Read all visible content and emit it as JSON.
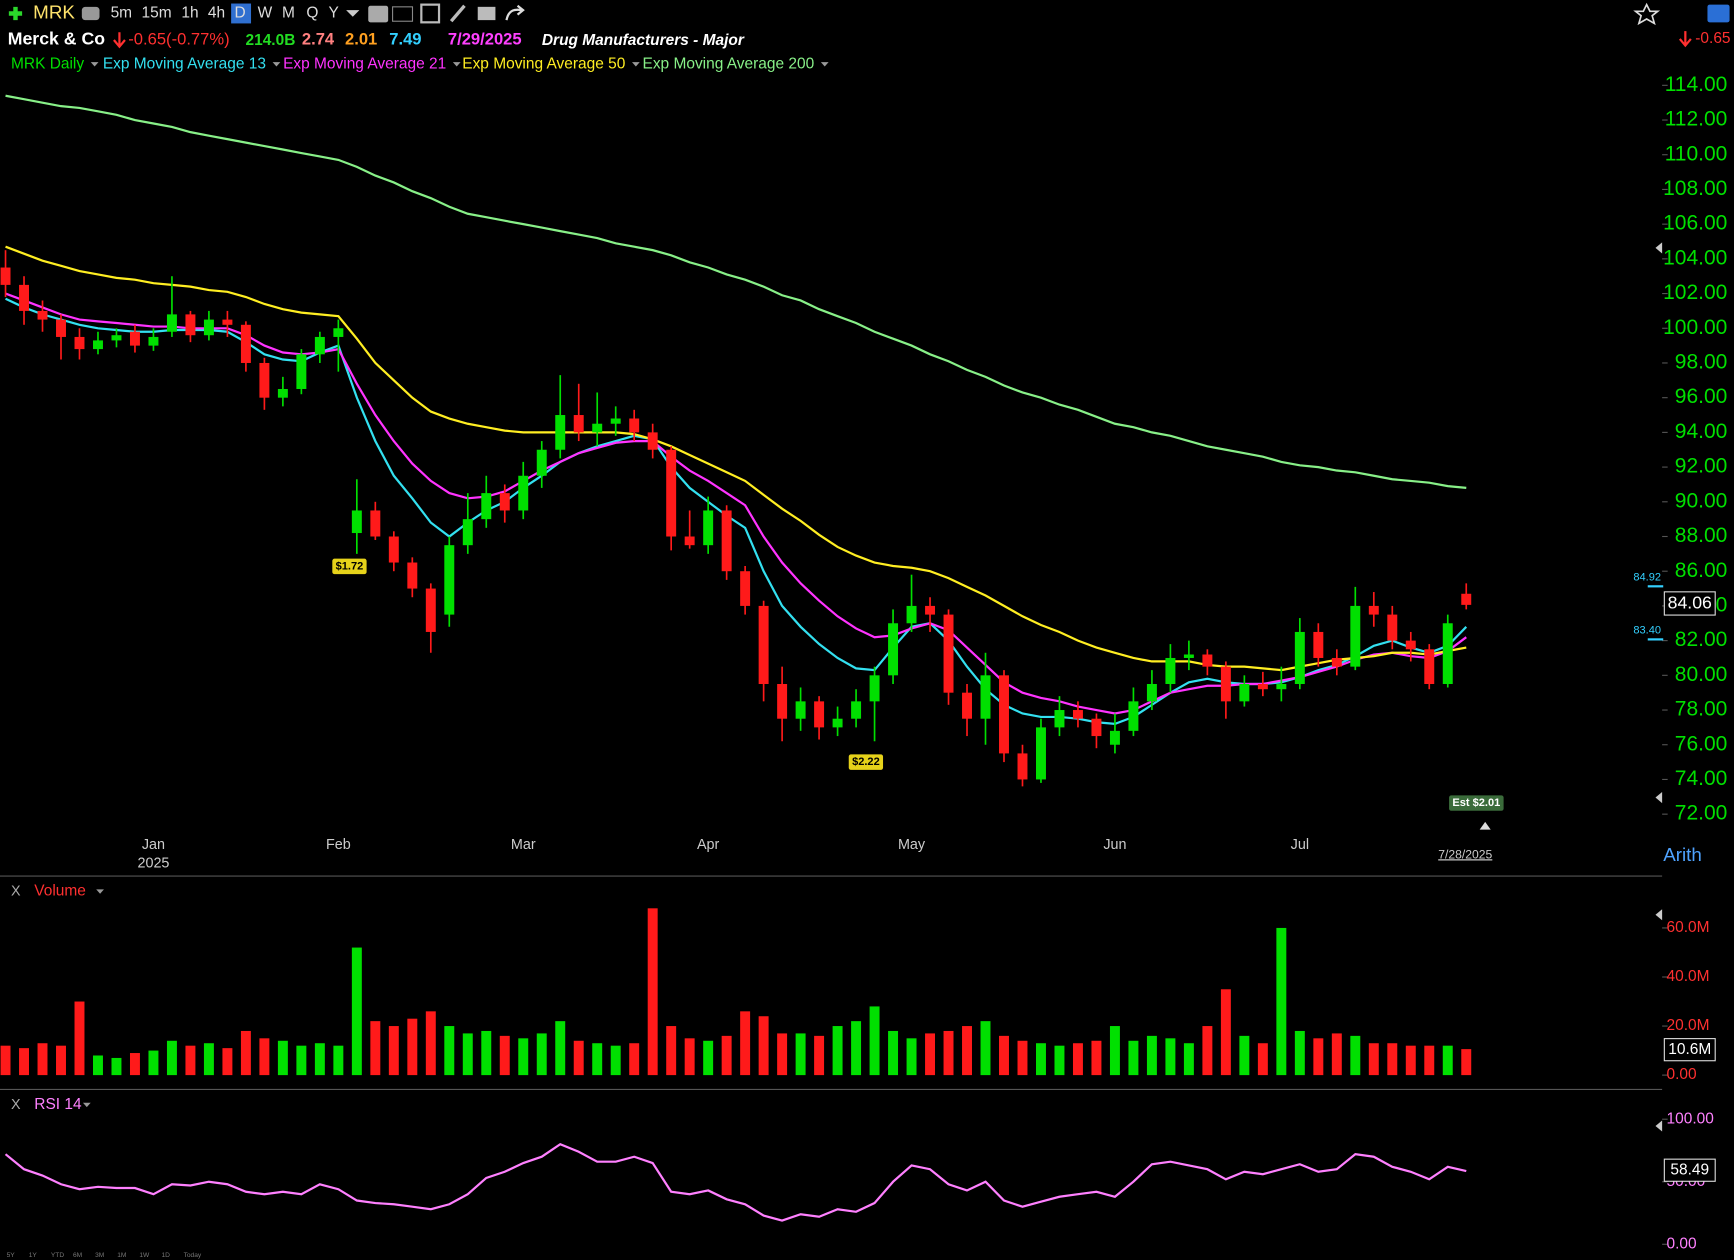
{
  "toolbar": {
    "symbol": "MRK",
    "intervals": [
      "5m",
      "15m",
      "1h",
      "4h",
      "D",
      "W",
      "M",
      "Q",
      "Y"
    ],
    "ranges": [
      "5Y",
      "1Y",
      "YTD",
      "6M",
      "3M",
      "1M",
      "1W",
      "1D",
      "Today"
    ]
  },
  "header": {
    "name": "Merck & Co",
    "change": "-0.65(-0.77%)",
    "market_cap": "214.0B",
    "stat1": "2.74",
    "stat2": "2.01",
    "stat3": "7.49",
    "date": "7/29/2025",
    "industry": "Drug Manufacturers - Major",
    "right_change": "-0.65"
  },
  "chart_data": [
    {
      "type": "candlestick",
      "name": "MRK Daily",
      "up_color": "#00e000",
      "down_color": "#ff1a1a",
      "categories": [
        null,
        null,
        null,
        null,
        null,
        null,
        null,
        null,
        "Jan",
        null,
        null,
        null,
        null,
        null,
        null,
        null,
        null,
        null,
        "Feb",
        null,
        null,
        null,
        null,
        null,
        null,
        null,
        null,
        null,
        "Mar",
        null,
        null,
        null,
        null,
        null,
        null,
        null,
        null,
        null,
        "Apr",
        null,
        null,
        null,
        null,
        null,
        null,
        null,
        null,
        null,
        null,
        "May",
        null,
        null,
        null,
        null,
        null,
        null,
        null,
        null,
        null,
        null,
        "Jun",
        null,
        null,
        null,
        null,
        null,
        null,
        null,
        null,
        null,
        "Jul",
        null,
        null,
        null,
        null,
        null,
        null,
        null,
        null,
        null
      ],
      "year_label": "2025",
      "last_date_label": "7/28/2025",
      "scale_label": "Arith",
      "annotations": [
        "$1.72",
        "$2.22",
        "Est $2.01"
      ],
      "price_flags": [
        "84.92",
        "83.40"
      ],
      "ohlc": [
        [
          103.5,
          104.5,
          101.8,
          102.5
        ],
        [
          102.5,
          103,
          100.2,
          101
        ],
        [
          101,
          101.6,
          99.8,
          100.5
        ],
        [
          100.5,
          100.8,
          98.2,
          99.5
        ],
        [
          99.5,
          100,
          98.2,
          98.8
        ],
        [
          98.8,
          99.8,
          98.5,
          99.3
        ],
        [
          99.3,
          100,
          98.9,
          99.6
        ],
        [
          99.8,
          100.2,
          98.6,
          99
        ],
        [
          99,
          100,
          98.7,
          99.5
        ],
        [
          99.8,
          103,
          99.5,
          100.8
        ],
        [
          100.8,
          101,
          99.2,
          99.6
        ],
        [
          99.6,
          101,
          99.3,
          100.5
        ],
        [
          100.5,
          101,
          99.5,
          100.2
        ],
        [
          100.2,
          100.4,
          97.5,
          98
        ],
        [
          98,
          98.3,
          95.3,
          96
        ],
        [
          96,
          97.2,
          95.5,
          96.5
        ],
        [
          96.5,
          98.8,
          96.2,
          98.5
        ],
        [
          98.5,
          99.8,
          98,
          99.5
        ],
        [
          99.5,
          100.5,
          97.5,
          100
        ],
        [
          88.2,
          91.3,
          87,
          89.5
        ],
        [
          89.5,
          90,
          87.8,
          88
        ],
        [
          88,
          88.3,
          86,
          86.5
        ],
        [
          86.5,
          86.8,
          84.5,
          85
        ],
        [
          85,
          85.3,
          81.3,
          82.5
        ],
        [
          83.5,
          88,
          82.8,
          87.5
        ],
        [
          87.5,
          90.5,
          87,
          89
        ],
        [
          89,
          91.5,
          88.5,
          90.5
        ],
        [
          90.5,
          91,
          88.8,
          89.5
        ],
        [
          89.5,
          92.3,
          89,
          91.5
        ],
        [
          91.5,
          93.5,
          90.8,
          93
        ],
        [
          93,
          97.3,
          92.5,
          95
        ],
        [
          95,
          96.8,
          93.5,
          94
        ],
        [
          94,
          96.3,
          93.2,
          94.5
        ],
        [
          94.5,
          95.5,
          93.8,
          94.8
        ],
        [
          94.8,
          95.3,
          93.5,
          94
        ],
        [
          94,
          94.5,
          92.5,
          93
        ],
        [
          93,
          93.2,
          87.2,
          88
        ],
        [
          88,
          89.5,
          87.3,
          87.5
        ],
        [
          87.5,
          90.3,
          87,
          89.5
        ],
        [
          89.5,
          89.8,
          85.5,
          86
        ],
        [
          86,
          86.3,
          83.5,
          84
        ],
        [
          84,
          84.3,
          78.5,
          79.5
        ],
        [
          79.5,
          80.5,
          76.2,
          77.5
        ],
        [
          77.5,
          79.3,
          76.8,
          78.5
        ],
        [
          78.5,
          78.8,
          76.3,
          77
        ],
        [
          77,
          78.2,
          76.5,
          77.5
        ],
        [
          77.5,
          79.2,
          77,
          78.5
        ],
        [
          78.5,
          80.5,
          76.2,
          80
        ],
        [
          80,
          83.8,
          79.5,
          83
        ],
        [
          83,
          85.8,
          82.5,
          84
        ],
        [
          84,
          84.5,
          82.5,
          83.5
        ],
        [
          83.5,
          83.8,
          78.3,
          79
        ],
        [
          79,
          79.5,
          76.5,
          77.5
        ],
        [
          77.5,
          81.3,
          76,
          80
        ],
        [
          80,
          80.3,
          75,
          75.5
        ],
        [
          75.5,
          76,
          73.6,
          74
        ],
        [
          74,
          77.5,
          73.8,
          77
        ],
        [
          77,
          78.8,
          76.5,
          78
        ],
        [
          78,
          78.5,
          77,
          77.5
        ],
        [
          77.5,
          77.8,
          75.8,
          76.5
        ],
        [
          76,
          77.8,
          75.5,
          76.8
        ],
        [
          76.8,
          79.3,
          76.5,
          78.5
        ],
        [
          78.5,
          80.3,
          78,
          79.5
        ],
        [
          79.5,
          81.8,
          79,
          81
        ],
        [
          81,
          82,
          80.3,
          81.2
        ],
        [
          81.2,
          81.5,
          80,
          80.5
        ],
        [
          80.5,
          80.8,
          77.5,
          78.5
        ],
        [
          78.5,
          80,
          78.2,
          79.5
        ],
        [
          79.5,
          80.2,
          78.8,
          79.2
        ],
        [
          79.2,
          80.5,
          78.5,
          79.5
        ],
        [
          79.5,
          83.3,
          79.2,
          82.5
        ],
        [
          82.5,
          83,
          80.5,
          81
        ],
        [
          81,
          81.5,
          80,
          80.5
        ],
        [
          80.5,
          85.1,
          80.3,
          84
        ],
        [
          84,
          84.8,
          82.8,
          83.5
        ],
        [
          83.5,
          84,
          81.5,
          82
        ],
        [
          82,
          82.5,
          80.8,
          81.5
        ],
        [
          81.5,
          81.8,
          79.2,
          79.5
        ],
        [
          79.5,
          83.5,
          79.3,
          83
        ],
        [
          84.7,
          85.3,
          83.8,
          84.06
        ]
      ],
      "series": [
        {
          "name": "Exp Moving Average 13",
          "color": "#33e0f0",
          "values": [
            101.7,
            101.2,
            100.8,
            100.5,
            100.2,
            100.0,
            99.9,
            99.8,
            99.8,
            99.9,
            99.9,
            99.9,
            99.8,
            99.2,
            98.5,
            98.2,
            98.1,
            98.6,
            99.0,
            96.0,
            93.5,
            91.5,
            90.2,
            88.8,
            88.0,
            88.8,
            89.5,
            90.0,
            90.8,
            91.5,
            92.3,
            92.8,
            93.2,
            93.5,
            93.8,
            93.6,
            92.0,
            90.8,
            90.0,
            89.2,
            88.5,
            86.0,
            84.0,
            82.8,
            81.8,
            81.0,
            80.4,
            80.3,
            81.6,
            82.8,
            83.0,
            82.0,
            80.5,
            79.2,
            78.3,
            77.8,
            77.6,
            77.6,
            77.5,
            77.3,
            77.2,
            77.6,
            78.3,
            79.0,
            79.6,
            79.8,
            79.6,
            79.5,
            79.5,
            79.6,
            79.9,
            80.3,
            80.6,
            81.1,
            81.7,
            82.0,
            81.6,
            81.3,
            81.7,
            82.8
          ]
        },
        {
          "name": "Exp Moving Average 21",
          "color": "#ff33ff",
          "values": [
            102.0,
            101.6,
            101.2,
            100.8,
            100.5,
            100.4,
            100.3,
            100.2,
            100.1,
            100.1,
            100.0,
            100.0,
            100.0,
            99.6,
            99.0,
            98.6,
            98.5,
            98.6,
            98.8,
            96.8,
            95.0,
            93.5,
            92.2,
            91.2,
            90.5,
            90.2,
            90.3,
            90.6,
            91.2,
            91.8,
            92.3,
            92.8,
            93.1,
            93.4,
            93.5,
            93.5,
            92.6,
            91.8,
            91.2,
            90.5,
            89.8,
            88.0,
            86.5,
            85.3,
            84.3,
            83.4,
            82.7,
            82.2,
            82.3,
            82.7,
            83.0,
            82.6,
            81.6,
            80.6,
            79.6,
            79.0,
            78.7,
            78.5,
            78.2,
            78.0,
            77.8,
            78.0,
            78.5,
            79.0,
            79.2,
            79.4,
            79.4,
            79.5,
            79.5,
            79.7,
            79.9,
            80.2,
            80.5,
            80.9,
            81.2,
            81.3,
            81.1,
            81.0,
            81.4,
            82.2
          ]
        },
        {
          "name": "Exp Moving Average 50",
          "color": "#ffee22",
          "values": [
            104.7,
            104.3,
            103.9,
            103.6,
            103.3,
            103.1,
            102.9,
            102.8,
            102.6,
            102.5,
            102.4,
            102.2,
            102.1,
            101.8,
            101.4,
            101.1,
            100.9,
            100.8,
            100.7,
            99.4,
            98.0,
            97.0,
            96.0,
            95.2,
            94.8,
            94.5,
            94.3,
            94.1,
            94.0,
            94.0,
            94.0,
            94.0,
            94.0,
            94.0,
            93.9,
            93.6,
            93.2,
            92.7,
            92.2,
            91.7,
            91.2,
            90.4,
            89.6,
            88.9,
            88.1,
            87.4,
            86.9,
            86.5,
            86.3,
            86.2,
            86.0,
            85.6,
            85.1,
            84.6,
            84.0,
            83.4,
            82.9,
            82.5,
            82.0,
            81.6,
            81.3,
            81.0,
            80.8,
            80.8,
            80.8,
            80.6,
            80.5,
            80.5,
            80.4,
            80.3,
            80.5,
            80.7,
            80.9,
            81.0,
            81.1,
            81.3,
            81.3,
            81.2,
            81.4,
            81.6
          ]
        },
        {
          "name": "Exp Moving Average 200",
          "color": "#88f088",
          "values": [
            113.4,
            113.2,
            113.0,
            112.8,
            112.7,
            112.5,
            112.3,
            112.0,
            111.8,
            111.6,
            111.3,
            111.1,
            110.9,
            110.7,
            110.5,
            110.3,
            110.1,
            109.9,
            109.7,
            109.3,
            108.8,
            108.4,
            107.9,
            107.5,
            107.0,
            106.6,
            106.4,
            106.2,
            106.0,
            105.8,
            105.6,
            105.4,
            105.2,
            104.9,
            104.7,
            104.5,
            104.2,
            103.8,
            103.5,
            103.1,
            102.8,
            102.4,
            101.9,
            101.6,
            101.1,
            100.7,
            100.3,
            99.8,
            99.4,
            99.0,
            98.5,
            98.1,
            97.6,
            97.2,
            96.7,
            96.3,
            96.0,
            95.6,
            95.3,
            94.9,
            94.5,
            94.3,
            94.0,
            93.8,
            93.5,
            93.2,
            93.0,
            92.8,
            92.6,
            92.3,
            92.1,
            92.0,
            91.8,
            91.7,
            91.5,
            91.3,
            91.2,
            91.1,
            90.9,
            90.8
          ]
        }
      ],
      "ylim": [
        68.56,
        115.91
      ],
      "yticks": [
        {
          "value": 72,
          "label": "72.00"
        },
        {
          "value": 74,
          "label": "74.00"
        },
        {
          "value": 76,
          "label": "76.00"
        },
        {
          "value": 78,
          "label": "78.00"
        },
        {
          "value": 80,
          "label": "80.00"
        },
        {
          "value": 82,
          "label": "82.00"
        },
        {
          "value": 84,
          "label": "84.00"
        },
        {
          "value": 86,
          "label": "86.00"
        },
        {
          "value": 88,
          "label": "88.00"
        },
        {
          "value": 90,
          "label": "90.00"
        },
        {
          "value": 92,
          "label": "92.00"
        },
        {
          "value": 94,
          "label": "94.00"
        },
        {
          "value": 96,
          "label": "96.00"
        },
        {
          "value": 98,
          "label": "98.00"
        },
        {
          "value": 100,
          "label": "100.00"
        },
        {
          "value": 102,
          "label": "102.00"
        },
        {
          "value": 104,
          "label": "104.00"
        },
        {
          "value": 106,
          "label": "106.00"
        },
        {
          "value": 108,
          "label": "108.00"
        },
        {
          "value": 110,
          "label": "110.00"
        },
        {
          "value": 112,
          "label": "112.00"
        },
        {
          "value": 114,
          "label": "114.00"
        }
      ],
      "grid": false
    },
    {
      "type": "bar",
      "name": "Volume",
      "values": [
        12,
        11,
        13,
        12,
        30,
        8,
        7,
        9,
        10,
        14,
        12,
        13,
        11,
        18,
        15,
        14,
        12,
        13,
        12,
        52,
        22,
        20,
        23,
        26,
        20,
        17,
        18,
        16,
        15,
        17,
        22,
        14,
        13,
        12,
        13,
        68,
        20,
        15,
        14,
        16,
        26,
        24,
        17,
        17,
        16,
        20,
        22,
        28,
        18,
        15,
        17,
        18,
        20,
        22,
        16,
        14,
        13,
        12,
        13,
        14,
        20,
        14,
        16,
        15,
        13,
        20,
        35,
        16,
        13,
        60,
        18,
        15,
        17,
        16,
        13,
        13,
        12,
        12,
        12,
        10.6
      ],
      "last_label": "10.6M",
      "ylim": [
        -5.86,
        80.7
      ],
      "yticks": [
        {
          "value": 0,
          "label": "0.00"
        },
        {
          "value": 20,
          "label": "20.0M"
        },
        {
          "value": 40,
          "label": "40.0M"
        },
        {
          "value": 60,
          "label": "60.0M"
        }
      ]
    },
    {
      "type": "line",
      "name": "RSI 14",
      "color": "#ff80ff",
      "values": [
        72,
        60,
        55,
        48,
        44,
        46,
        45,
        45,
        40,
        48,
        47,
        50,
        48,
        42,
        40,
        42,
        40,
        48,
        44,
        35,
        33,
        32,
        30,
        28,
        32,
        40,
        53,
        58,
        65,
        70,
        80,
        74,
        66,
        66,
        70,
        65,
        42,
        40,
        43,
        36,
        32,
        23,
        19,
        24,
        22,
        28,
        26,
        33,
        50,
        63,
        60,
        48,
        43,
        50,
        35,
        30,
        34,
        38,
        40,
        42,
        38,
        50,
        64,
        66,
        63,
        60,
        52,
        58,
        56,
        60,
        64,
        58,
        60,
        72,
        70,
        62,
        58,
        52,
        62,
        58.49
      ],
      "ylim": [
        -12.4,
        122
      ],
      "yticks": [
        {
          "value": 0,
          "label": "0.00"
        },
        {
          "value": 50,
          "label": "50.00"
        },
        {
          "value": 100,
          "label": "100.00"
        }
      ]
    }
  ]
}
